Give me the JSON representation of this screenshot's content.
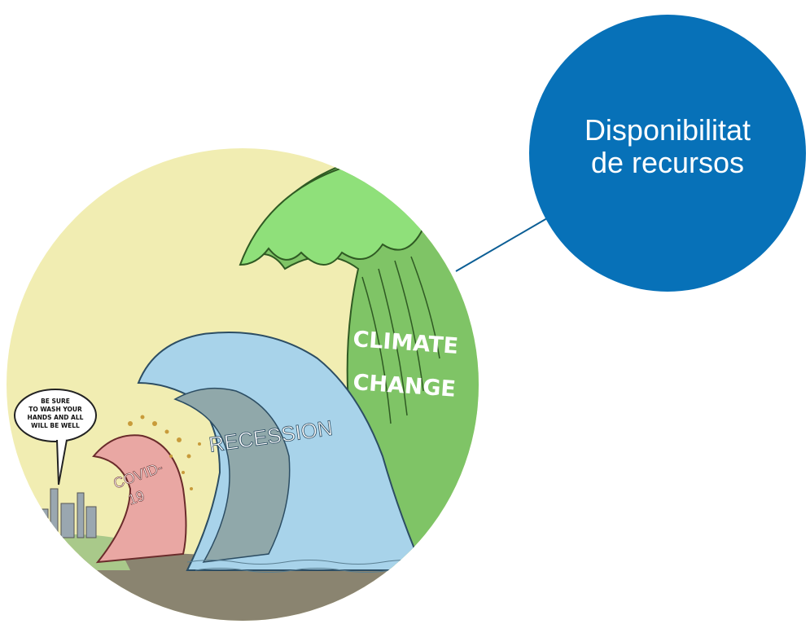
{
  "colors": {
    "callout_fill": "#0771b8",
    "sky": "#f1edb2",
    "wave_climate": "#7fc466",
    "wave_climate_crest": "#8fe07a",
    "wave_recession": "#a8d3ea",
    "wave_covid": "#e9a7a3",
    "ground": "#8a8470"
  },
  "callout": {
    "line1": "Disponibilitat",
    "line2": "de recursos"
  },
  "cartoon": {
    "wave_climate_label_1": "CLIMATE",
    "wave_climate_label_2": "CHANGE",
    "wave_recession_label": "RECESSION",
    "wave_covid_label_1": "COVID-",
    "wave_covid_label_2": "19",
    "speech_bubble_lines": [
      "BE SURE",
      "TO WASH YOUR",
      "HANDS AND ALL",
      "WILL BE WELL"
    ]
  }
}
